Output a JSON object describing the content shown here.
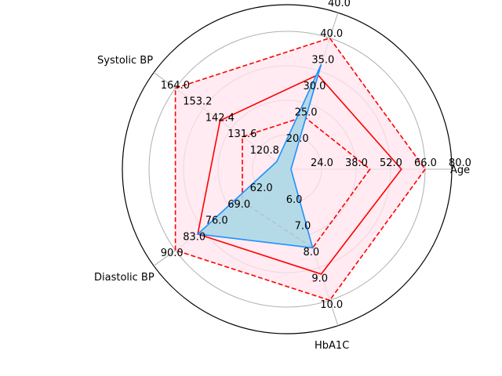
{
  "chart_data": {
    "type": "radar",
    "axes": [
      {
        "label": "Age",
        "ticks": [
          "24.0",
          "38.0",
          "52.0",
          "66.0",
          "80.0"
        ],
        "min": 10,
        "max": 80
      },
      {
        "label": "HbA1C",
        "ticks": [
          "6.0",
          "7.0",
          "8.0",
          "9.0",
          "10.0"
        ],
        "min": 5,
        "max": 10
      },
      {
        "label": "Diastolic BP",
        "ticks": [
          "62.0",
          "69.0",
          "76.0",
          "83.0",
          "90.0"
        ],
        "min": 55,
        "max": 90
      },
      {
        "label": "Systolic BP",
        "ticks": [
          "120.8",
          "131.6",
          "142.4",
          "153.2",
          "164.0"
        ],
        "min": 110,
        "max": 164
      },
      {
        "label": "",
        "ticks": [
          "20.0",
          "25.0",
          "30.0",
          "35.0",
          "40.0"
        ],
        "min": 15,
        "max": 40
      }
    ],
    "top_axis_label": "40.0",
    "series": [
      {
        "values": [
          80,
          10,
          90,
          164,
          40
        ],
        "style": "dashed",
        "color": "#ff0000",
        "fill": "#ffe4ec"
      },
      {
        "values": [
          68,
          9,
          83,
          142.4,
          33
        ],
        "style": "solid",
        "color": "#ff0000",
        "fill": "none"
      },
      {
        "values": [
          52,
          8,
          69,
          131.6,
          25
        ],
        "style": "dashed",
        "color": "#ff0000",
        "fill": "none"
      },
      {
        "values": [
          12,
          8,
          83,
          115,
          35
        ],
        "style": "solid",
        "color": "#1e90ff",
        "fill": "#add8e6"
      }
    ],
    "grid": true,
    "colors": {
      "outer_circle": "#000000",
      "grid": "#b0b0b0"
    }
  }
}
